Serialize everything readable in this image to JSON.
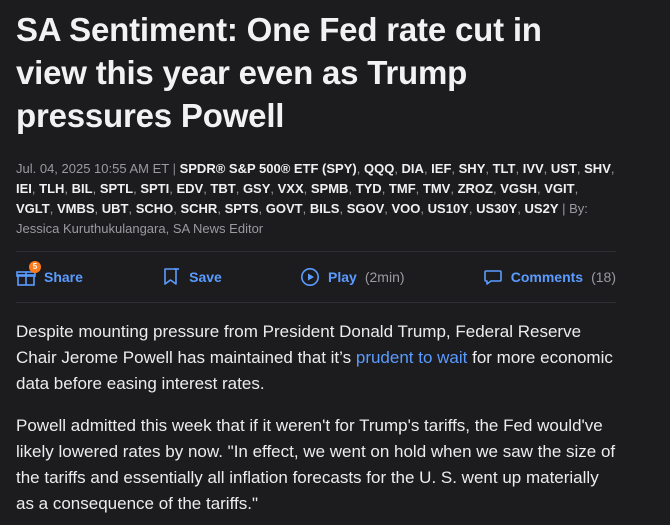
{
  "article": {
    "title": "SA Sentiment: One Fed rate cut in view this year even as Trump pressures Powell",
    "date": "Jul. 04, 2025 10:55 AM ET",
    "sep1": " | ",
    "tickers": [
      "SPDR® S&P 500® ETF (SPY)",
      "QQQ",
      "DIA",
      "IEF",
      "SHY",
      "TLT",
      "IVV",
      "UST",
      "SHV",
      "IEI",
      "TLH",
      "BIL",
      "SPTL",
      "SPTI",
      "EDV",
      "TBT",
      "GSY",
      "VXX",
      "SPMB",
      "TYD",
      "TMF",
      "TMV",
      "ZROZ",
      "VGSH",
      "VGIT",
      "VGLT",
      "VMBS",
      "UBT",
      "SCHO",
      "SCHR",
      "SPTS",
      "GOVT",
      "BILS",
      "SGOV",
      "VOO",
      "US10Y",
      "US30Y",
      "US2Y"
    ],
    "byline": " | By: Jessica Kuruthukulangara, SA News Editor"
  },
  "actions": {
    "share_label": "Share",
    "share_badge": "5",
    "save_label": "Save",
    "play_label": "Play",
    "play_duration": "(2min)",
    "comments_label": "Comments",
    "comments_count": "(18)"
  },
  "body": {
    "p1_before": "Despite mounting pressure from President Donald Trump, Federal Reserve Chair Jerome Powell has maintained that it’s ",
    "p1_link": "prudent to wait",
    "p1_after": " for more economic data before easing interest rates.",
    "p2": "Powell admitted this week that if it weren't for Trump's tariffs, the Fed would've likely lowered rates by now. \"In effect, we went on hold when we saw the size of the tariffs and essentially all inflation forecasts for the U. S. went up materially as a consequence of the tariffs.\""
  },
  "colors": {
    "background": "#1c1c1e",
    "accent": "#5a9bff",
    "badge": "#ff7a1a"
  }
}
